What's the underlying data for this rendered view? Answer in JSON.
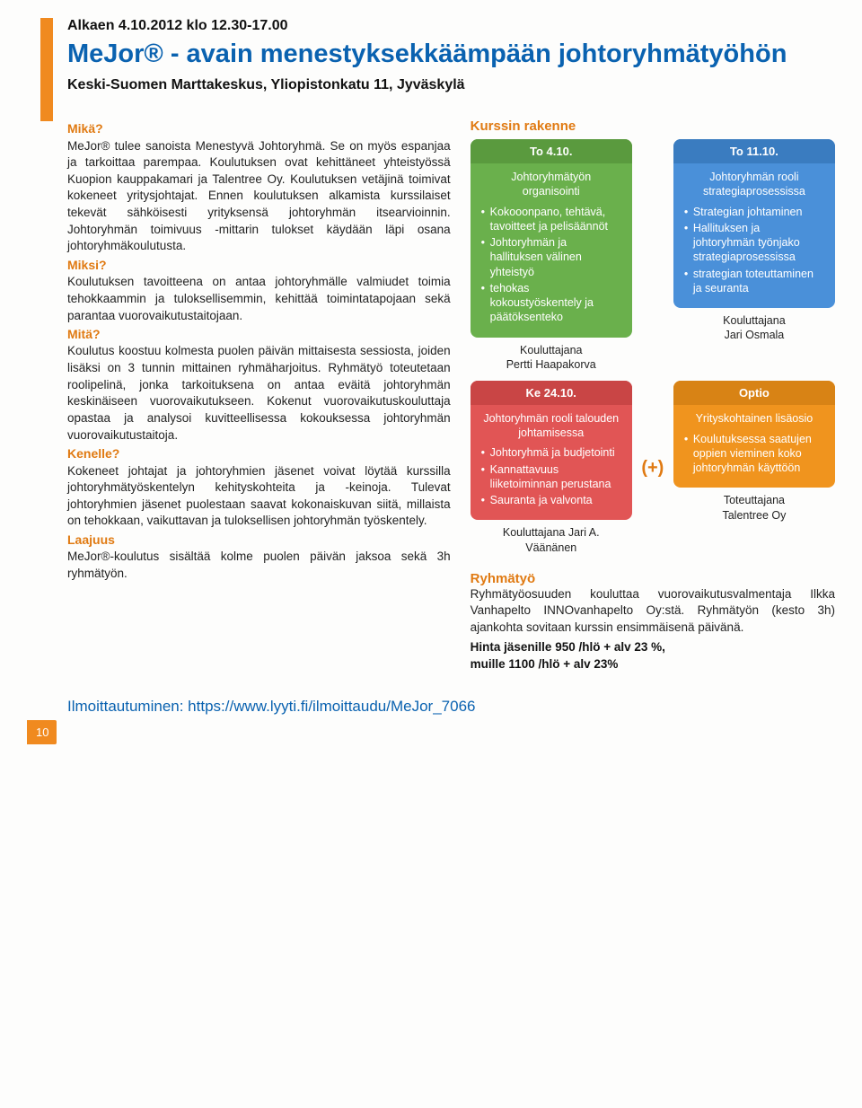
{
  "header": {
    "date_line": "Alkaen 4.10.2012 klo 12.30-17.00",
    "title": "MeJor® - avain menestyksekkäämpään johtoryhmätyöhön",
    "subtitle": "Keski-Suomen Marttakeskus, Yliopistonkatu 11, Jyväskylä"
  },
  "left": {
    "mika_head": "Mikä?",
    "mika_body": "MeJor® tulee sanoista Menestyvä Johtoryhmä. Se on myös espanjaa ja tarkoittaa parempaa. Koulutuksen ovat kehittäneet yhteistyössä Kuopion kauppakamari ja Talentree Oy. Koulutuksen vetäjinä toimivat kokeneet yritysjohtajat. Ennen koulutuksen alkamista kurssilaiset tekevät sähköisesti yrityksensä johtoryhmän itsearvioinnin. Johtoryhmän toimivuus -mittarin tulokset käydään läpi osana johtoryhmäkoulutusta.",
    "miksi_head": "Miksi?",
    "miksi_body": "Koulutuksen tavoitteena on antaa johtoryhmälle valmiudet toimia tehokkaammin ja tuloksellisemmin, kehittää toimintatapojaan sekä parantaa vuorovaikutustaitojaan.",
    "mita_head": "Mitä?",
    "mita_body": "Koulutus koostuu kolmesta puolen päivän mittaisesta sessiosta, joiden lisäksi on 3 tunnin mittainen ryhmäharjoitus. Ryhmätyö toteutetaan roolipelinä, jonka tarkoituksena on antaa eväitä johtoryhmän keskinäiseen vuorovaikutukseen. Kokenut vuorovaikutuskouluttaja opastaa ja analysoi kuvitteellisessa kokouksessa johtoryhmän vuorovaikutustaitoja.",
    "kenelle_head": "Kenelle?",
    "kenelle_body": "Kokeneet johtajat ja johtoryhmien jäsenet voivat löytää kurssilla johtoryhmätyöskentelyn kehityskohteita ja -keinoja. Tulevat johtoryhmien jäsenet puolestaan saavat kokonaiskuvan siitä, millaista on tehokkaan, vaikuttavan ja tuloksellisen johtoryhmän työskentely.",
    "laajuus_head": "Laajuus",
    "laajuus_body": "MeJor®-koulutus sisältää kolme puolen päivän jaksoa sekä 3h ryhmätyön."
  },
  "right": {
    "kurssin_label": "Kurssin rakenne",
    "ryhmatyo_head": "Ryhmätyö",
    "ryhmatyo_body": "Ryhmätyöosuuden kouluttaa vuorovaikutusvalmentaja Ilkka Vanhapelto INNOvanhapelto Oy:stä. Ryhmätyön (kesto 3h) ajankohta sovitaan kurssin ensimmäisenä päivänä.",
    "price1": "Hinta jäsenille 950 /hlö + alv 23 %,",
    "price2": "muille 1100 /hlö + alv 23%"
  },
  "cards": {
    "green": {
      "header": "To 4.10.",
      "lead": "Johtoryhmätyön organisointi",
      "items": [
        "Kokooonpano, tehtävä, tavoitteet ja pelisäännöt",
        "Johtoryhmän ja hallituksen välinen yhteistyö",
        "tehokas kokoustyöskentely ja päätöksenteko"
      ],
      "footer": "Kouluttajana\nPertti Haapakorva",
      "color": "#6ab04c"
    },
    "blue": {
      "header": "To 11.10.",
      "lead": "Johtoryhmän rooli strategiaprosessissa",
      "items": [
        "Strategian johtaminen",
        "Hallituksen ja johtoryhmän työnjako strategiaprosessissa",
        "strategian toteuttaminen ja seuranta"
      ],
      "footer": "Kouluttajana\nJari Osmala",
      "color": "#4a90d9"
    },
    "red": {
      "header": "Ke 24.10.",
      "lead": "Johtoryhmän rooli talouden johtamisessa",
      "items": [
        "Johtoryhmä ja budjetointi",
        "Kannattavuus liiketoiminnan perustana",
        "Sauranta ja valvonta"
      ],
      "footer": "Kouluttajana Jari A.\nVäänänen",
      "color": "#e15555"
    },
    "orange": {
      "header": "Optio",
      "lead": "Yrityskohtainen lisäosio",
      "items": [
        "Koulutuksessa saatujen oppien vieminen koko johtoryhmän käyttöön"
      ],
      "footer": "Toteuttajana\nTalentree Oy",
      "color": "#f0941e"
    }
  },
  "plus_symbol": "(+)",
  "registration": "Ilmoittautuminen: https://www.lyyti.fi/ilmoittaudu/MeJor_7066",
  "page_number": "10"
}
